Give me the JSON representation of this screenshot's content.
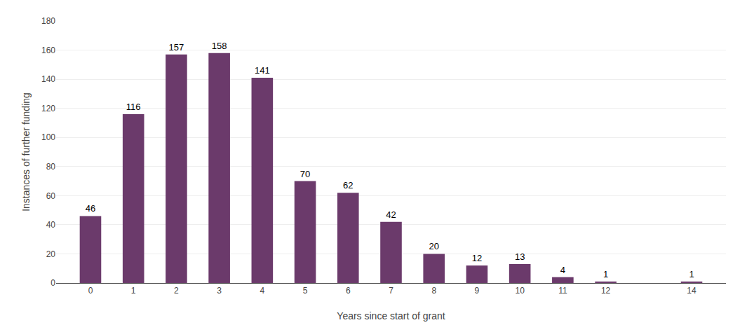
{
  "chart_data": {
    "type": "bar",
    "x": [
      0,
      1,
      2,
      3,
      4,
      5,
      6,
      7,
      8,
      9,
      10,
      11,
      12,
      14
    ],
    "values": [
      46,
      116,
      157,
      158,
      141,
      70,
      62,
      42,
      20,
      12,
      13,
      4,
      1,
      1
    ],
    "color": "#6b3a6b",
    "xlabel": "Years since start of grant",
    "ylabel": "Instances of further funding",
    "xlim": [
      -0.8,
      14.8
    ],
    "xticks": [
      0,
      1,
      2,
      3,
      4,
      5,
      6,
      7,
      8,
      9,
      10,
      11,
      12,
      14
    ],
    "ylim": [
      0,
      180
    ],
    "yticks": [
      0,
      20,
      40,
      60,
      80,
      100,
      120,
      140,
      160,
      180
    ],
    "grid": "y",
    "data_labels": true
  }
}
